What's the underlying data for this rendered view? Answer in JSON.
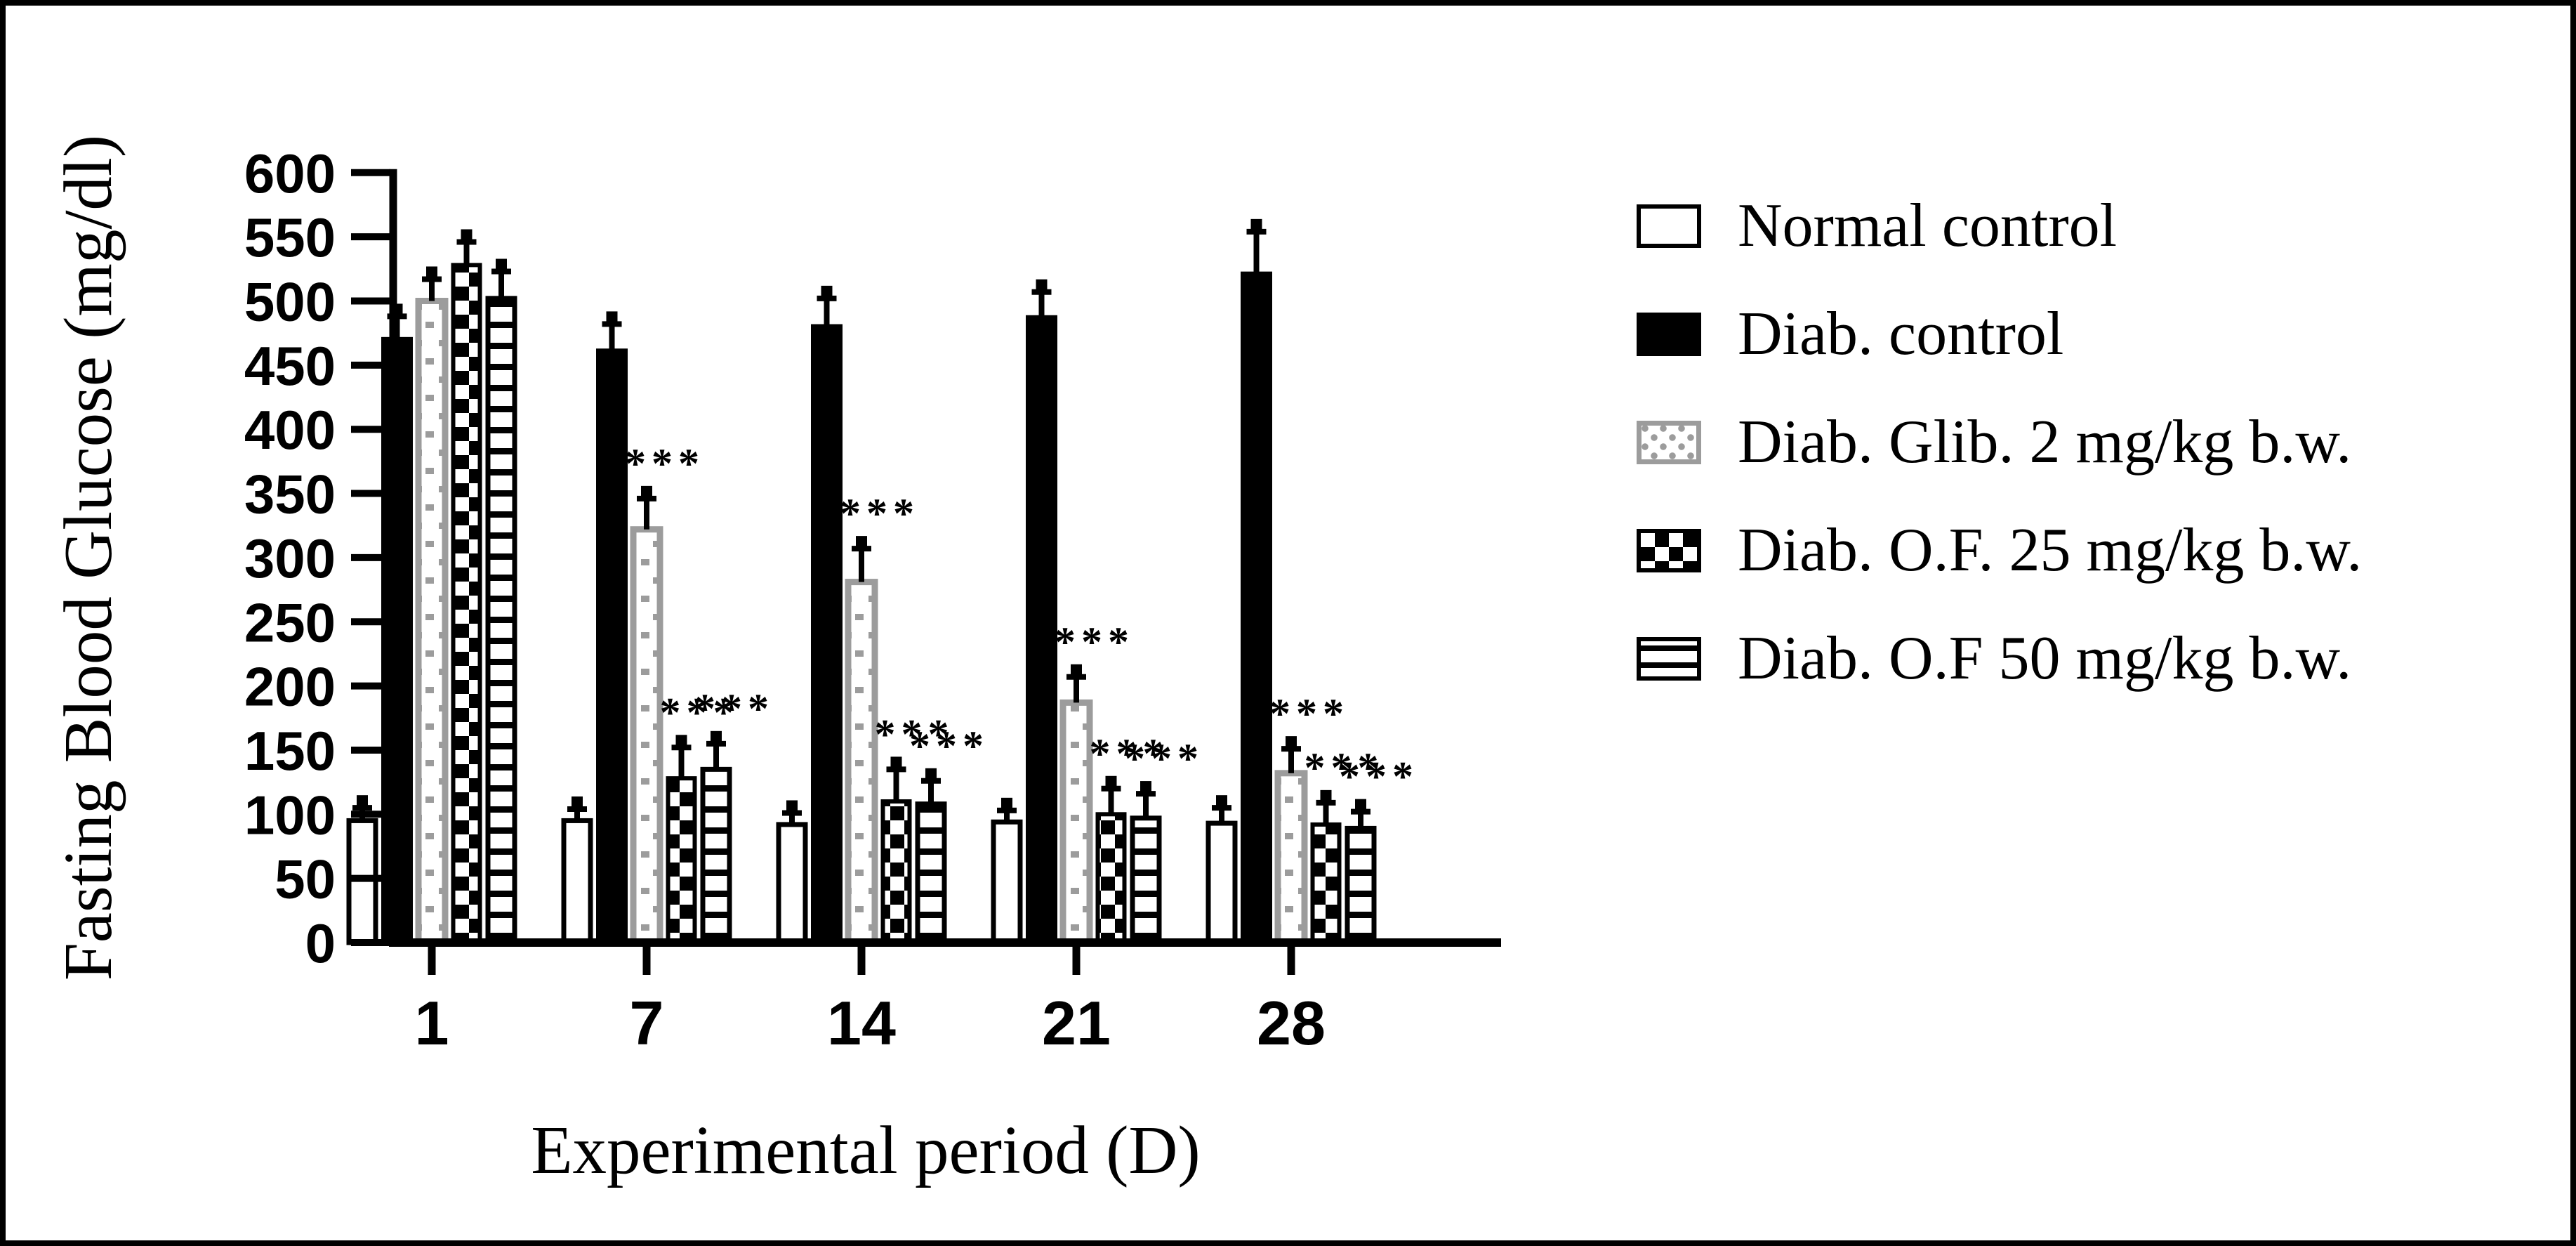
{
  "figure": {
    "background": "#ffffff",
    "border_color": "#000000",
    "colors": {
      "black": "#000000",
      "gray": "#9c9c9c",
      "white": "#ffffff"
    }
  },
  "chart_data": {
    "type": "bar",
    "title": "",
    "xlabel": "Experimental period (D)",
    "ylabel": "Fasting Blood Glucose (mg/dl)",
    "categories": [
      "1",
      "7",
      "14",
      "21",
      "28"
    ],
    "ylim": [
      0,
      600
    ],
    "ytick_step": 50,
    "grid": false,
    "legend_position": "right",
    "significance_marker": "***",
    "series": [
      {
        "name": "Normal control",
        "pattern": "open",
        "values": [
          95,
          95,
          92,
          94,
          93
        ],
        "errors": [
          10,
          9,
          9,
          9,
          12
        ],
        "significant": [
          false,
          false,
          false,
          false,
          false
        ]
      },
      {
        "name": "Diab. control",
        "pattern": "solid",
        "values": [
          470,
          461,
          480,
          487,
          521
        ],
        "errors": [
          18,
          21,
          22,
          20,
          33
        ],
        "significant": [
          false,
          false,
          false,
          false,
          false
        ]
      },
      {
        "name": "Diab. Glib. 2 mg/kg b.w.",
        "pattern": "dots",
        "values": [
          500,
          322,
          281,
          187,
          132
        ],
        "errors": [
          17,
          24,
          26,
          20,
          19
        ],
        "significant": [
          false,
          true,
          true,
          true,
          true
        ]
      },
      {
        "name": "Diab. O.F. 25 mg/kg b.w.",
        "pattern": "checker",
        "values": [
          528,
          128,
          110,
          100,
          92
        ],
        "errors": [
          18,
          24,
          25,
          20,
          17
        ],
        "significant": [
          false,
          true,
          true,
          true,
          true
        ]
      },
      {
        "name": "Diab. O.F 50 mg/kg b.w.",
        "pattern": "hlines",
        "values": [
          502,
          135,
          108,
          97,
          89
        ],
        "errors": [
          21,
          20,
          18,
          19,
          13
        ],
        "significant": [
          false,
          true,
          true,
          true,
          true
        ]
      }
    ]
  }
}
